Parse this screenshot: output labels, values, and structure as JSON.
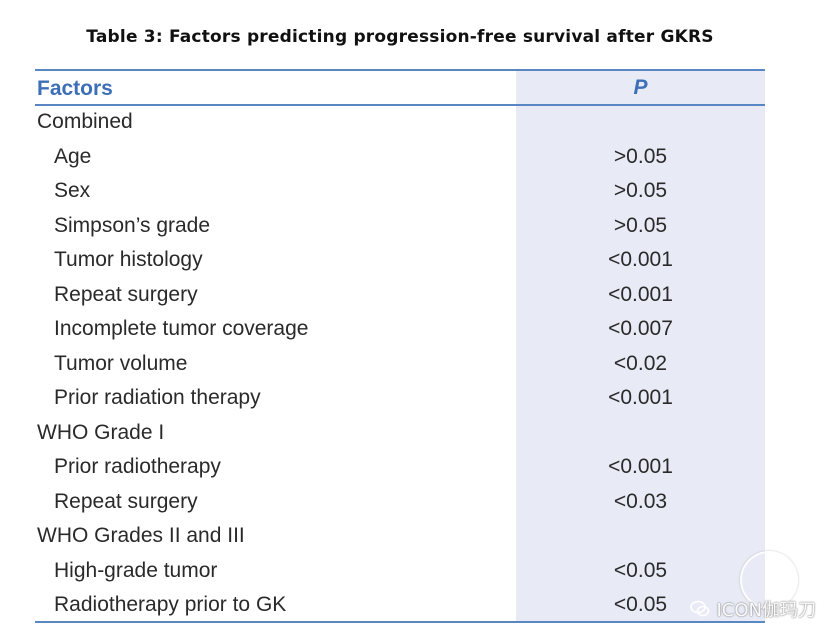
{
  "title": "Table 3: Factors predicting progression-free survival after GKRS",
  "table": {
    "headers": {
      "factors": "Factors",
      "p": "P"
    },
    "rows": [
      {
        "factor": "Combined",
        "p": "",
        "indent": false
      },
      {
        "factor": "Age",
        "p": ">0.05",
        "indent": true
      },
      {
        "factor": "Sex",
        "p": ">0.05",
        "indent": true
      },
      {
        "factor": "Simpson’s grade",
        "p": ">0.05",
        "indent": true
      },
      {
        "factor": "Tumor histology",
        "p": "<0.001",
        "indent": true
      },
      {
        "factor": "Repeat surgery",
        "p": "<0.001",
        "indent": true
      },
      {
        "factor": "Incomplete tumor coverage",
        "p": "<0.007",
        "indent": true
      },
      {
        "factor": "Tumor volume",
        "p": "<0.02",
        "indent": true
      },
      {
        "factor": "Prior radiation therapy",
        "p": "<0.001",
        "indent": true
      },
      {
        "factor": "WHO Grade I",
        "p": "",
        "indent": false
      },
      {
        "factor": "Prior radiotherapy",
        "p": "<0.001",
        "indent": true
      },
      {
        "factor": "Repeat surgery",
        "p": "<0.03",
        "indent": true
      },
      {
        "factor": "WHO Grades II and III",
        "p": "",
        "indent": false
      },
      {
        "factor": "High-grade tumor",
        "p": "<0.05",
        "indent": true
      },
      {
        "factor": "Radiotherapy prior to GK",
        "p": "<0.05",
        "indent": true
      }
    ]
  },
  "watermark": {
    "text": "ICON伽玛刀",
    "icon": "wechat-icon"
  },
  "colors": {
    "header_text": "#3d6fb6",
    "rule": "#5b86c4",
    "p_column_bg": "#e8ebf6"
  }
}
